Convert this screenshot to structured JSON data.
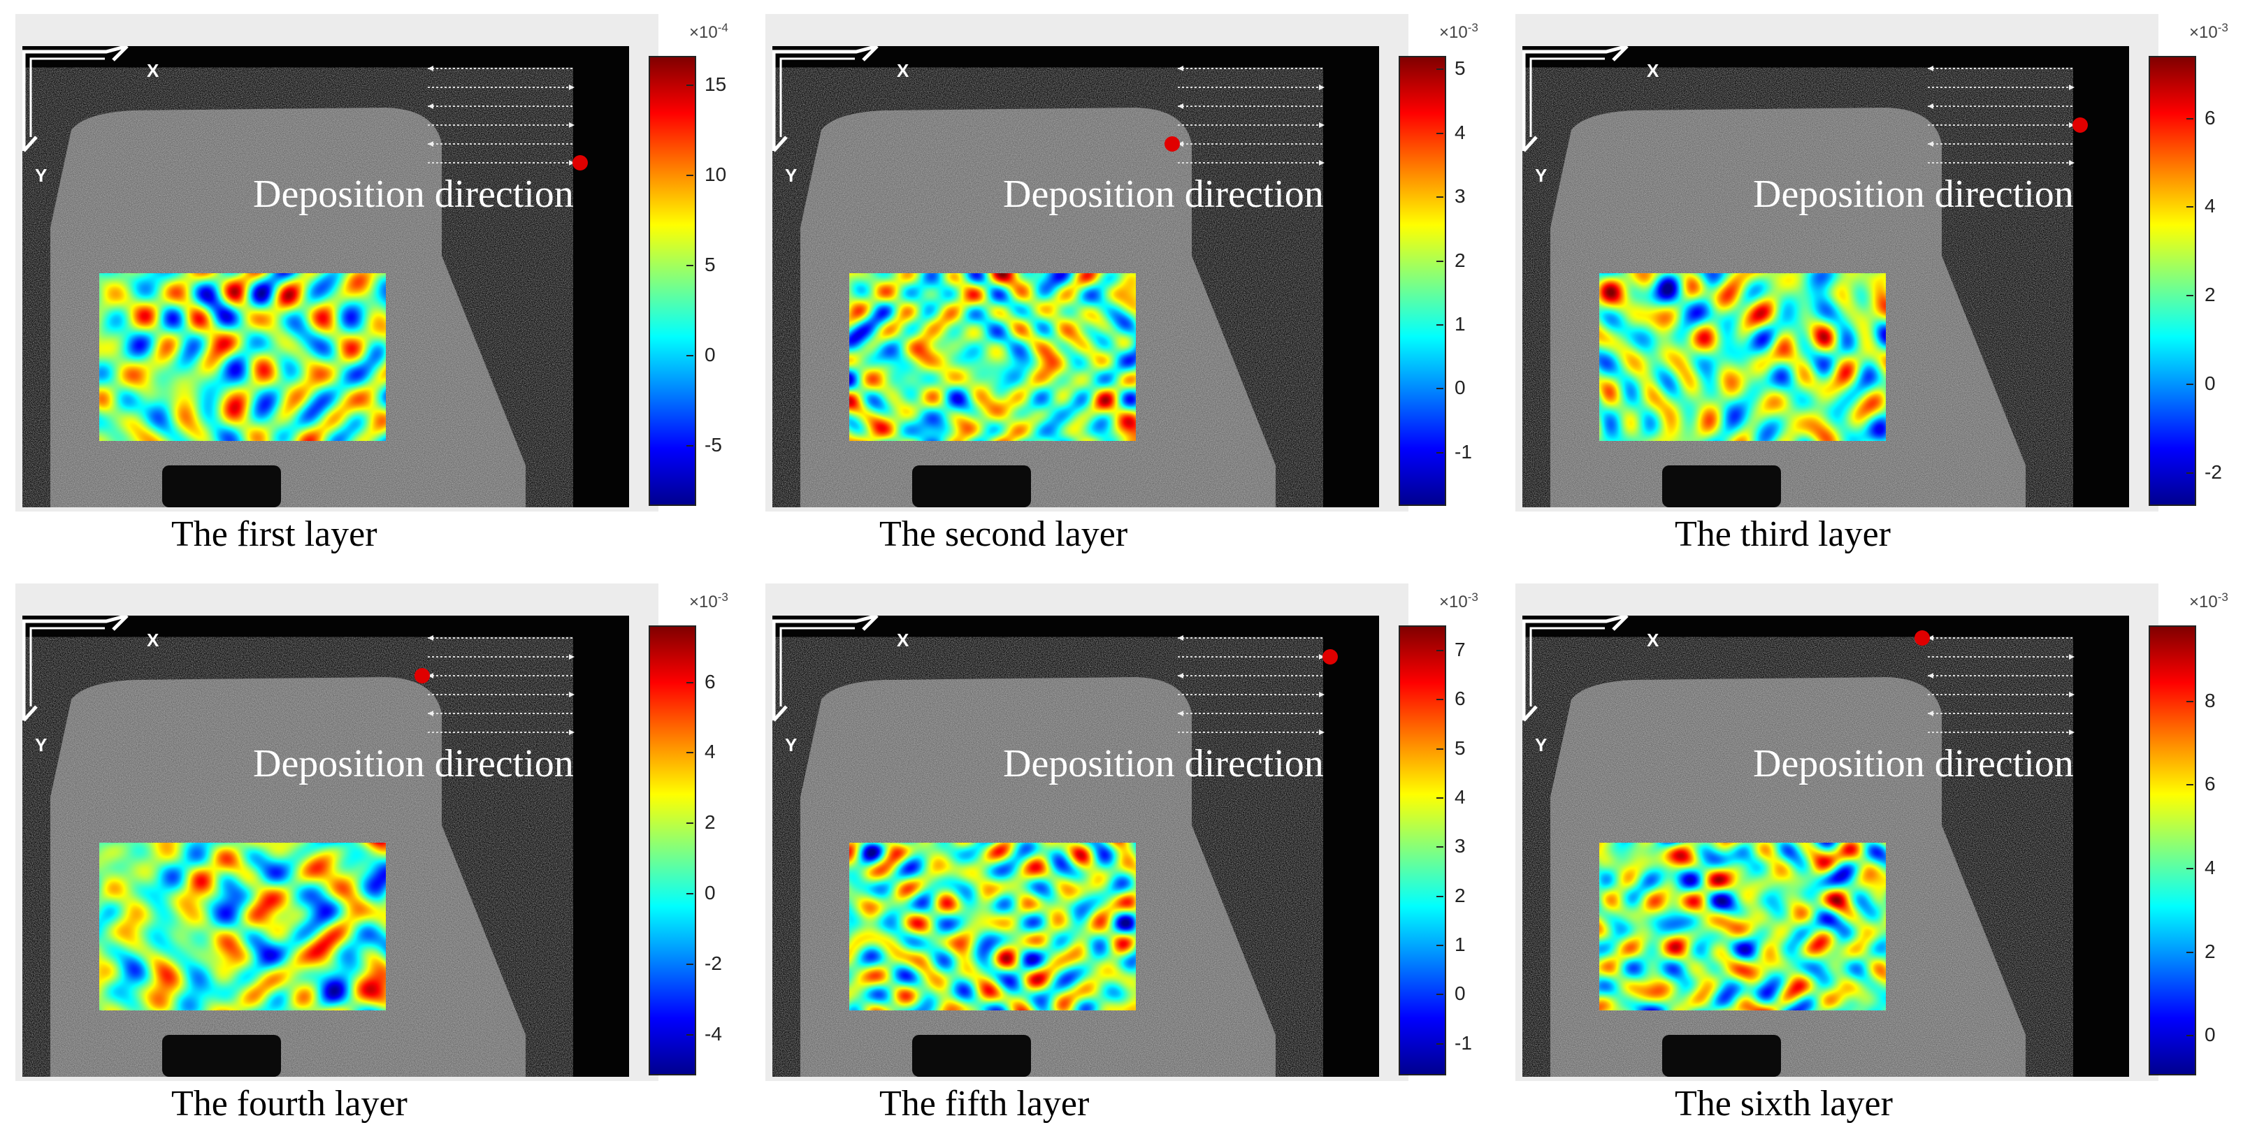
{
  "axis_labels": {
    "x": "X",
    "y": "Y"
  },
  "deposition_label": "Deposition direction",
  "colormap": [
    "#00008f",
    "#0000ff",
    "#0080ff",
    "#00ffff",
    "#80ff80",
    "#ffff00",
    "#ff8000",
    "#ff0000",
    "#800000"
  ],
  "panels": [
    {
      "caption": "The first layer",
      "exponent_base": "×10",
      "exponent_power": "-4",
      "ticks": [
        "15",
        "10",
        "5",
        "0",
        "-5"
      ],
      "tick_values": [
        15,
        10,
        5,
        0,
        -5
      ],
      "range": [
        -8.2,
        16.6
      ],
      "dot_row": 5,
      "dot_side": "right"
    },
    {
      "caption": "The second layer",
      "exponent_base": "×10",
      "exponent_power": "-3",
      "ticks": [
        "5",
        "4",
        "3",
        "2",
        "1",
        "0",
        "-1"
      ],
      "tick_values": [
        5,
        4,
        3,
        2,
        1,
        0,
        -1
      ],
      "range": [
        -1.8,
        5.2
      ],
      "dot_row": 4,
      "dot_side": "left"
    },
    {
      "caption": "The third layer",
      "exponent_base": "×10",
      "exponent_power": "-3",
      "ticks": [
        "6",
        "4",
        "2",
        "0",
        "-2"
      ],
      "tick_values": [
        6,
        4,
        2,
        0,
        -2
      ],
      "range": [
        -2.7,
        7.4
      ],
      "dot_row": 3,
      "dot_side": "right"
    },
    {
      "caption": "The fourth layer",
      "exponent_base": "×10",
      "exponent_power": "-3",
      "ticks": [
        "6",
        "4",
        "2",
        "0",
        "-2",
        "-4"
      ],
      "tick_values": [
        6,
        4,
        2,
        0,
        -2,
        -4
      ],
      "range": [
        -5.1,
        7.6
      ],
      "dot_row": 2,
      "dot_side": "left"
    },
    {
      "caption": "The fifth layer",
      "exponent_base": "×10",
      "exponent_power": "-3",
      "ticks": [
        "7",
        "6",
        "5",
        "4",
        "3",
        "2",
        "1",
        "0",
        "-1"
      ],
      "tick_values": [
        7,
        6,
        5,
        4,
        3,
        2,
        1,
        0,
        -1
      ],
      "range": [
        -1.6,
        7.5
      ],
      "dot_row": 1,
      "dot_side": "right"
    },
    {
      "caption": "The sixth layer",
      "exponent_base": "×10",
      "exponent_power": "-3",
      "ticks": [
        "8",
        "6",
        "4",
        "2",
        "0"
      ],
      "tick_values": [
        8,
        6,
        4,
        2,
        0
      ],
      "range": [
        -0.9,
        9.8
      ],
      "dot_row": 0,
      "dot_side": "left"
    }
  ]
}
